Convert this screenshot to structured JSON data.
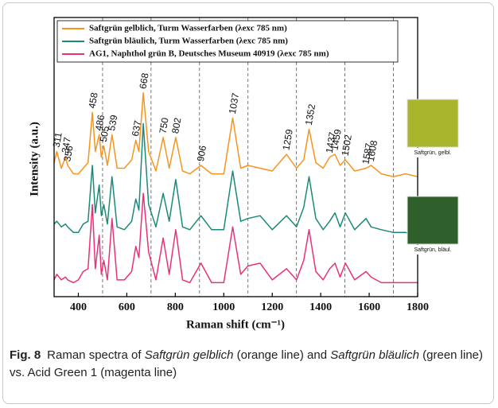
{
  "chart_data": {
    "type": "line",
    "ylabel": "Intensity (a.u.)",
    "xlabel": "Raman shift (cm⁻¹)",
    "x": [
      300,
      311,
      330,
      347,
      356,
      380,
      400,
      420,
      440,
      458,
      470,
      486,
      495,
      505,
      520,
      539,
      560,
      590,
      620,
      637,
      650,
      668,
      690,
      720,
      750,
      775,
      802,
      830,
      860,
      906,
      950,
      1000,
      1037,
      1070,
      1100,
      1150,
      1200,
      1259,
      1300,
      1330,
      1352,
      1380,
      1410,
      1437,
      1459,
      1480,
      1502,
      1540,
      1587,
      1608,
      1650,
      1700,
      1750,
      1800
    ],
    "series": [
      {
        "name": "Saftgrün gelblich, Turm Wasserfarben (λexc 785 nm)",
        "color": "#f7941d",
        "values": [
          48,
          52,
          46,
          50,
          47,
          44,
          44,
          46,
          48,
          66,
          52,
          58,
          50,
          54,
          47,
          58,
          46,
          46,
          49,
          56,
          52,
          73,
          52,
          45,
          57,
          46,
          57,
          45,
          44,
          47,
          44,
          44,
          64,
          46,
          47,
          46,
          45,
          51,
          46,
          49,
          60,
          48,
          46,
          50,
          51,
          47,
          49,
          45,
          46,
          47,
          44,
          43,
          44,
          43
        ]
      },
      {
        "name": "Saftgrün bläulich, Turm Wasserfarben (λexc 785 nm)",
        "color": "#1a8a7a",
        "values": [
          26,
          27,
          25,
          26,
          25,
          23,
          23,
          26,
          27,
          47,
          30,
          40,
          29,
          33,
          26,
          43,
          25,
          24,
          27,
          35,
          31,
          62,
          33,
          25,
          37,
          27,
          42,
          25,
          24,
          29,
          24,
          24,
          45,
          27,
          28,
          29,
          24,
          29,
          25,
          32,
          43,
          28,
          24,
          27,
          30,
          25,
          30,
          24,
          28,
          25,
          24,
          23,
          23,
          22
        ]
      },
      {
        "name": "AG1, Naphthol grün B, Deutsches Museum 40919 (λexc 785 nm)",
        "color": "#e8317a",
        "values": [
          6,
          8,
          6,
          7,
          6,
          5,
          6,
          9,
          10,
          33,
          10,
          22,
          8,
          13,
          6,
          28,
          6,
          6,
          9,
          18,
          14,
          37,
          16,
          6,
          21,
          8,
          24,
          6,
          5,
          12,
          5,
          5,
          25,
          8,
          11,
          12,
          6,
          10,
          6,
          13,
          24,
          9,
          6,
          10,
          12,
          7,
          12,
          6,
          9,
          7,
          5,
          5,
          5,
          5
        ]
      }
    ],
    "peak_labels": [
      311,
      347,
      356,
      458,
      486,
      505,
      539,
      637,
      668,
      750,
      802,
      906,
      1037,
      1259,
      1352,
      1437,
      1459,
      1502,
      1587,
      1608
    ],
    "xlim": [
      300,
      1800
    ],
    "xticks": [
      400,
      600,
      800,
      1000,
      1200,
      1400,
      1600,
      1800
    ],
    "ylim": [
      0,
      100
    ],
    "reference_lines": [
      500,
      700,
      900,
      1100,
      1300,
      1500,
      1700
    ],
    "insets": [
      {
        "label": "Saftgrün, gelbl.",
        "color": "#a9b52c"
      },
      {
        "label": "Saftgrün, bläul.",
        "color": "#2f5f2b"
      }
    ]
  },
  "caption": {
    "label": "Fig. 8",
    "parts": [
      "Raman spectra of ",
      "Saftgrün gelblich",
      " (orange line) and ",
      "Saftgrün bläulich",
      " (green line) vs. Acid Green 1 (magenta line)"
    ]
  }
}
